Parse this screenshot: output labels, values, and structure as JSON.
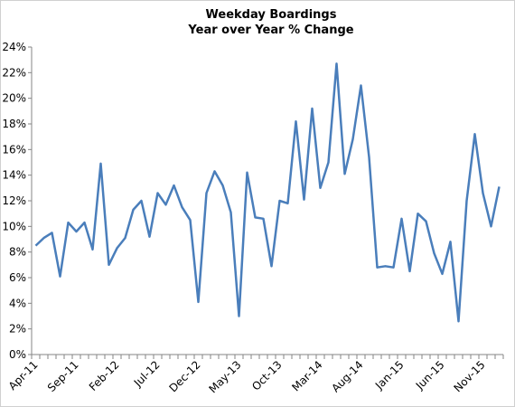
{
  "chart_data": {
    "type": "line",
    "title": "Weekday Boardings",
    "subtitle": "Year over Year % Change",
    "categories": [
      "Apr-11",
      null,
      null,
      null,
      null,
      "Sep-11",
      null,
      null,
      null,
      null,
      "Feb-12",
      null,
      null,
      null,
      null,
      "Jul-12",
      null,
      null,
      null,
      null,
      "Dec-12",
      null,
      null,
      null,
      null,
      "May-13",
      null,
      null,
      null,
      null,
      "Oct-13",
      null,
      null,
      null,
      null,
      "Mar-14",
      null,
      null,
      null,
      null,
      "Aug-14",
      null,
      null,
      null,
      null,
      "Jan-15",
      null,
      null,
      null,
      null,
      "Jun-15",
      null,
      null,
      null,
      null,
      "Nov-15",
      null,
      null
    ],
    "series": [
      {
        "name": "Weekday Boardings YoY % Change",
        "color": "#4a7ebb",
        "values": [
          8.5,
          9.1,
          9.5,
          6.1,
          10.3,
          9.6,
          10.3,
          8.2,
          14.9,
          7.0,
          8.3,
          9.1,
          11.3,
          12.0,
          9.2,
          12.6,
          11.7,
          13.2,
          11.5,
          10.5,
          4.1,
          12.6,
          14.3,
          13.2,
          11.1,
          3.0,
          14.2,
          10.7,
          10.6,
          6.9,
          12.0,
          11.8,
          18.2,
          12.1,
          19.2,
          13.0,
          15.0,
          22.7,
          14.1,
          16.8,
          21.0,
          15.4,
          6.8,
          6.9,
          6.8,
          10.6,
          6.5,
          11.0,
          10.4,
          7.9,
          6.3,
          8.8,
          2.6,
          12.0,
          17.2,
          12.6,
          10.0,
          13.1
        ]
      }
    ],
    "ylim": [
      0,
      24
    ],
    "yticks": [
      {
        "value": 0,
        "label": "0%"
      },
      {
        "value": 2,
        "label": "2%"
      },
      {
        "value": 4,
        "label": "4%"
      },
      {
        "value": 6,
        "label": "6%"
      },
      {
        "value": 8,
        "label": "8%"
      },
      {
        "value": 10,
        "label": "10%"
      },
      {
        "value": 12,
        "label": "12%"
      },
      {
        "value": 14,
        "label": "14%"
      },
      {
        "value": 16,
        "label": "16%"
      },
      {
        "value": 18,
        "label": "18%"
      },
      {
        "value": 20,
        "label": "20%"
      },
      {
        "value": 22,
        "label": "22%"
      },
      {
        "value": 24,
        "label": "24%"
      }
    ],
    "grid": false
  }
}
